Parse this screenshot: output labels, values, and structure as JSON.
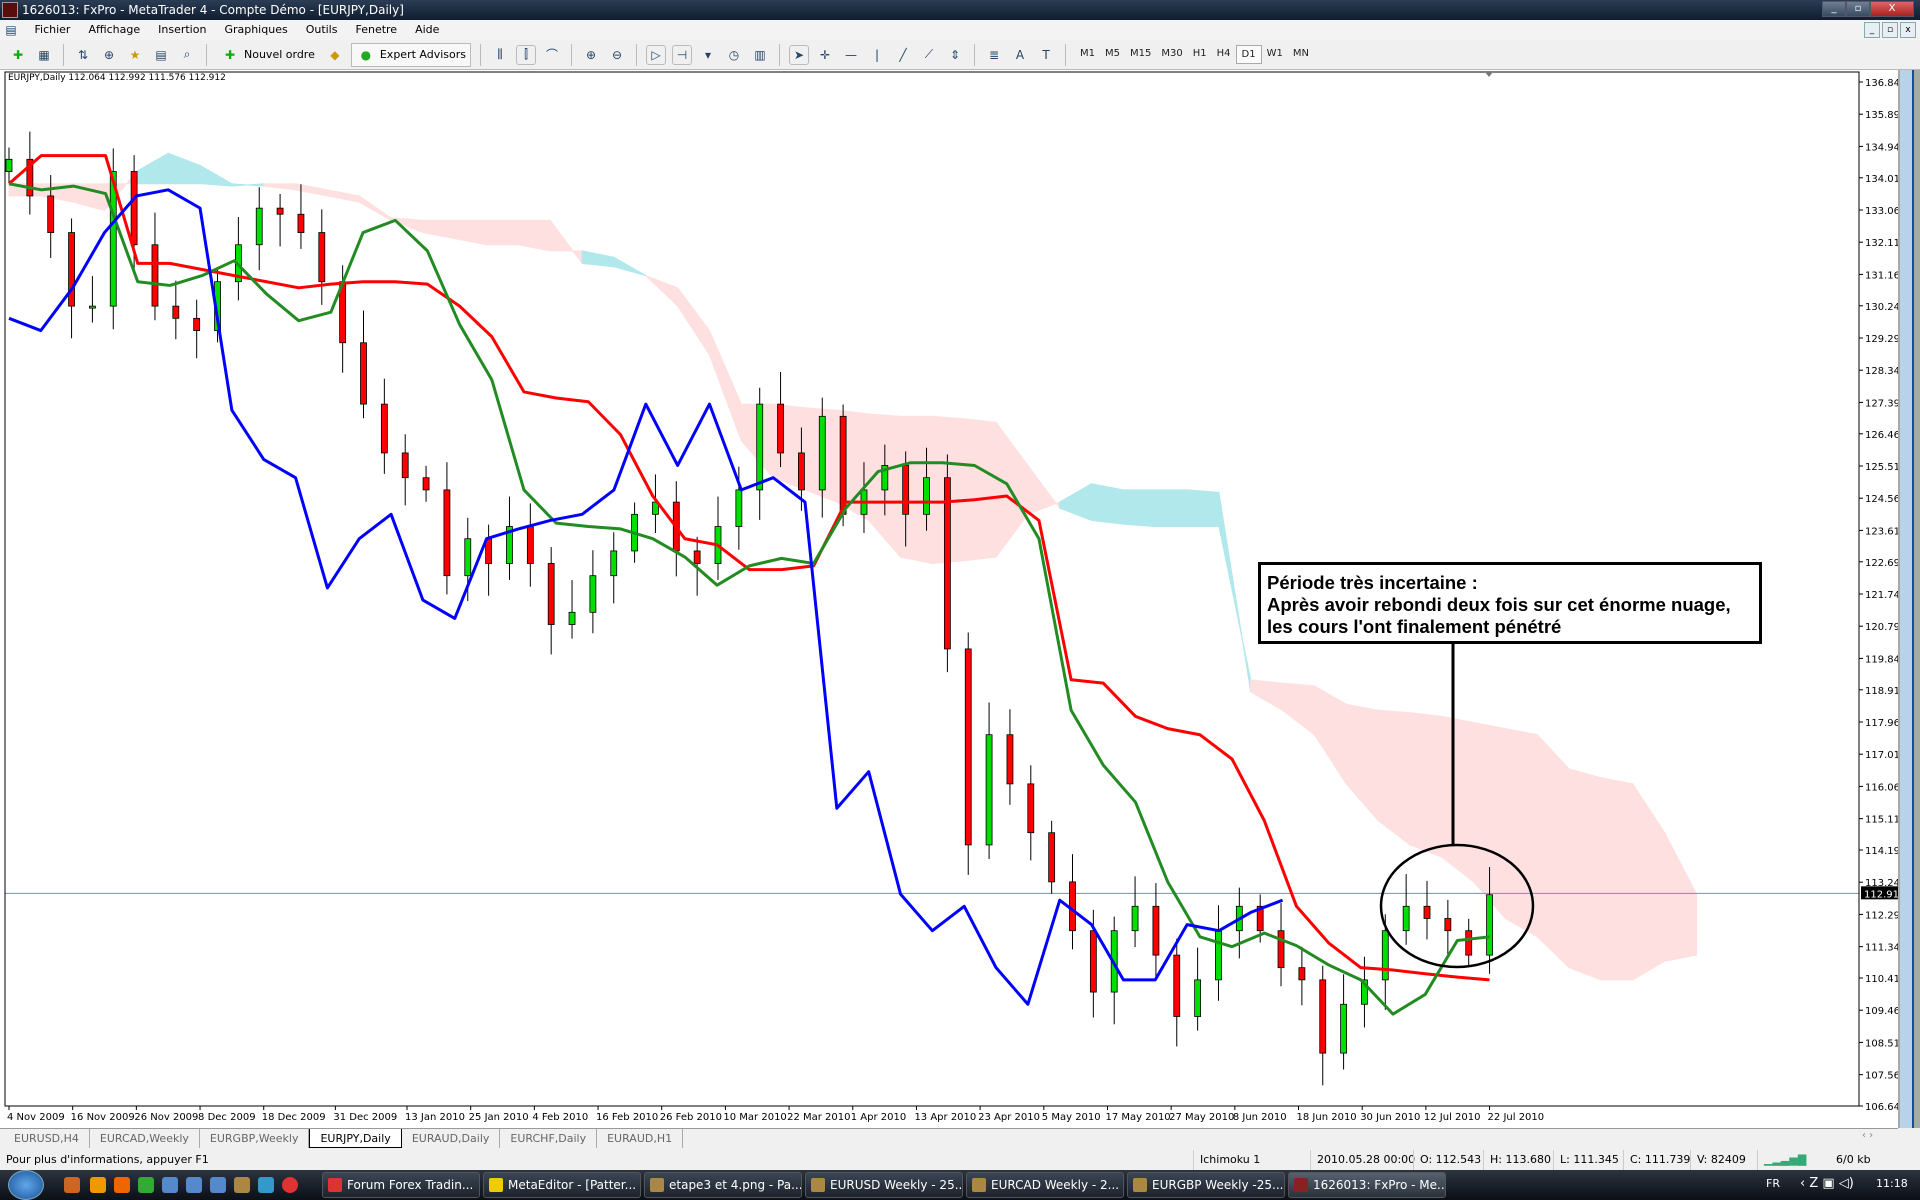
{
  "window": {
    "title": "1626013: FxPro - MetaTrader 4 - Compte Démo - [EURJPY,Daily]",
    "minimize": "_",
    "restore": "▫",
    "close": "X"
  },
  "menu": [
    "Fichier",
    "Affichage",
    "Insertion",
    "Graphiques",
    "Outils",
    "Fenetre",
    "Aide"
  ],
  "toolbar": {
    "new_order": "Nouvel ordre",
    "expert_advisors": "Expert Advisors",
    "timeframes": [
      "M1",
      "M5",
      "M15",
      "M30",
      "H1",
      "H4",
      "D1",
      "W1",
      "MN"
    ],
    "active_timeframe": "D1"
  },
  "chart_info": "EURJPY,Daily  112.064 112.992 111.576 112.912",
  "chart_data": {
    "type": "candlestick",
    "symbol": "EURJPY",
    "timeframe": "Daily",
    "indicator": "Ichimoku 1",
    "ylim": [
      106.64,
      136.84
    ],
    "price_ticks": [
      "136.840",
      "135.890",
      "134.940",
      "134.015",
      "133.065",
      "132.115",
      "131.165",
      "130.240",
      "129.290",
      "128.340",
      "127.390",
      "126.465",
      "125.515",
      "124.565",
      "123.615",
      "122.690",
      "121.740",
      "120.790",
      "119.840",
      "118.915",
      "117.965",
      "117.015",
      "116.065",
      "115.115",
      "114.190",
      "113.240",
      "112.290",
      "111.340",
      "110.415",
      "109.465",
      "108.515",
      "107.565",
      "106.640"
    ],
    "current_price": "112.912",
    "date_ticks": [
      "4 Nov 2009",
      "16 Nov 2009",
      "26 Nov 2009",
      "8 Dec 2009",
      "18 Dec 2009",
      "31 Dec 2009",
      "13 Jan 2010",
      "25 Jan 2010",
      "4 Feb 2010",
      "16 Feb 2010",
      "26 Feb 2010",
      "10 Mar 2010",
      "22 Mar 2010",
      "1 Apr 2010",
      "13 Apr 2010",
      "23 Apr 2010",
      "5 May 2010",
      "17 May 2010",
      "27 May 2010",
      "8 Jun 2010",
      "18 Jun 2010",
      "30 Jun 2010",
      "12 Jul 2010",
      "22 Jul 2010"
    ],
    "candles": {
      "start": "4 Nov 2009",
      "end": "22 Jul 2010",
      "open_first": 134.2,
      "closes": [
        134.56,
        133.48,
        132.4,
        130.23,
        130.23,
        134.2,
        132.04,
        130.23,
        129.87,
        129.51,
        130.95,
        132.04,
        133.12,
        132.94,
        132.4,
        130.95,
        129.15,
        127.34,
        125.9,
        125.17,
        124.81,
        122.28,
        123.37,
        122.64,
        123.73,
        122.64,
        120.84,
        121.2,
        122.28,
        123.01,
        124.09,
        124.45,
        123.01,
        122.64,
        123.73,
        124.81,
        127.34,
        125.9,
        124.81,
        126.98,
        124.09,
        124.81,
        125.53,
        124.09,
        125.17,
        120.12,
        114.34,
        117.59,
        116.14,
        114.7,
        113.25,
        111.81,
        110.0,
        111.81,
        112.53,
        111.09,
        109.28,
        110.36,
        111.81,
        112.53,
        111.81,
        110.72,
        110.36,
        108.2,
        109.64,
        110.36,
        111.81,
        112.53,
        112.17,
        111.81,
        111.09,
        112.87
      ]
    },
    "lines": [
      {
        "color": "#ff0000",
        "start": "4 Nov 2009",
        "end": "22 Jul 2010",
        "values": [
          133.84,
          134.67,
          134.67,
          134.67,
          131.49,
          131.49,
          131.31,
          131.13,
          130.95,
          130.77,
          130.88,
          130.95,
          130.95,
          130.88,
          130.23,
          129.33,
          127.7,
          127.52,
          127.41,
          126.44,
          124.63,
          123.37,
          123.19,
          122.46,
          122.46,
          122.57,
          124.45,
          124.45,
          124.45,
          124.45,
          124.52,
          124.63,
          123.91,
          119.21,
          119.11,
          118.13,
          117.77,
          117.59,
          116.87,
          115.06,
          112.53,
          111.45,
          110.72,
          110.65,
          110.54,
          110.44,
          110.36
        ]
      },
      {
        "color": "#228b22",
        "start": "4 Nov 2009",
        "end": "22 Jul 2010",
        "values": [
          133.84,
          133.66,
          133.77,
          133.55,
          130.95,
          130.84,
          131.13,
          131.57,
          130.59,
          129.8,
          130.05,
          132.4,
          132.76,
          131.86,
          129.69,
          128.06,
          124.81,
          123.83,
          123.73,
          123.66,
          123.37,
          122.83,
          122.0,
          122.57,
          122.79,
          122.64,
          124.27,
          125.35,
          125.61,
          125.61,
          125.53,
          124.99,
          123.37,
          118.31,
          116.69,
          115.6,
          113.25,
          111.63,
          111.34,
          111.74,
          111.37,
          110.8,
          110.36,
          109.35,
          109.93,
          111.52,
          111.63
        ]
      },
      {
        "color": "#0000ff",
        "start": "4 Nov 2009",
        "end": "16 Jun 2010",
        "values": [
          129.87,
          129.51,
          130.77,
          132.4,
          133.48,
          133.66,
          133.12,
          127.16,
          125.71,
          125.17,
          121.92,
          123.37,
          124.09,
          121.56,
          121.02,
          123.37,
          123.66,
          123.91,
          124.09,
          124.81,
          127.34,
          125.53,
          127.34,
          124.81,
          125.17,
          124.45,
          115.42,
          116.5,
          112.89,
          111.81,
          112.53,
          110.72,
          109.64,
          112.71,
          111.99,
          110.36,
          110.36,
          111.99,
          111.81,
          112.35,
          112.71
        ]
      }
    ],
    "cloud": {
      "start": "4 Nov 2009",
      "end": "27 Aug 2010",
      "bullish_color": "#b0e8ec",
      "bearish_color": "#ffe0e0",
      "span_a": [
        133.48,
        133.48,
        133.3,
        133.05,
        134.2,
        134.74,
        134.38,
        133.84,
        133.77,
        133.66,
        133.48,
        133.3,
        132.76,
        132.4,
        132.22,
        132.04,
        132.04,
        131.86,
        131.86,
        131.67,
        131.13,
        130.23,
        128.79,
        126.26,
        125.17,
        124.81,
        124.45,
        123.91,
        122.83,
        122.64,
        122.72,
        122.83,
        124.09,
        124.45,
        124.99,
        124.81,
        124.81,
        124.81,
        124.74,
        118.85,
        118.31,
        117.59,
        116.14,
        115.06,
        114.34,
        113.98,
        113.25,
        112.17,
        111.63,
        110.72,
        110.36,
        110.36,
        110.91,
        111.09
      ],
      "span_b": [
        133.84,
        133.84,
        133.84,
        133.84,
        133.84,
        133.84,
        133.84,
        133.77,
        133.84,
        133.84,
        133.66,
        133.48,
        132.83,
        132.76,
        132.76,
        132.76,
        132.76,
        132.76,
        131.49,
        131.39,
        131.13,
        130.77,
        129.51,
        127.34,
        127.34,
        127.23,
        127.16,
        127.05,
        126.98,
        126.98,
        126.91,
        126.8,
        125.53,
        124.27,
        123.91,
        123.8,
        123.73,
        123.73,
        123.73,
        119.21,
        119.11,
        119.03,
        118.49,
        118.31,
        118.24,
        118.13,
        117.95,
        117.77,
        117.59,
        116.58,
        116.32,
        116.14,
        114.7,
        112.89
      ]
    },
    "colors": {
      "bull": "#00e000",
      "bear": "#ff0000",
      "current_price_line": "#7890a8"
    },
    "annotation": {
      "lines": [
        "Période très incertaine :",
        "Après avoir rebondi deux fois sur cet énorme nuage,",
        "les cours l'ont finalement pénétré"
      ]
    }
  },
  "tabs": [
    {
      "label": "EURUSD,H4"
    },
    {
      "label": "EURCAD,Weekly"
    },
    {
      "label": "EURGBP,Weekly"
    },
    {
      "label": "EURJPY,Daily",
      "active": true
    },
    {
      "label": "EURAUD,Daily"
    },
    {
      "label": "EURCHF,Daily"
    },
    {
      "label": "EURAUD,H1"
    }
  ],
  "status": {
    "help": "Pour plus d'informations, appuyer F1",
    "indicator": "Ichimoku 1",
    "datetime": "2010.05.28 00:00",
    "open": "O: 112.543",
    "high": "H: 113.680",
    "low": "L: 111.345",
    "close": "C: 111.739",
    "volume": "V: 82409",
    "traffic": "6/0 kb"
  },
  "taskbar": {
    "items": [
      "Forum Forex Tradin...",
      "MetaEditor - [Patter...",
      "etape3 et 4.png - Pa...",
      "EURUSD Weekly - 25...",
      "EURCAD Weekly - 2...",
      "EURGBP Weekly -25...",
      "1626013: FxPro - Me..."
    ],
    "active_index": 6,
    "lang": "FR",
    "clock": "11:18"
  }
}
